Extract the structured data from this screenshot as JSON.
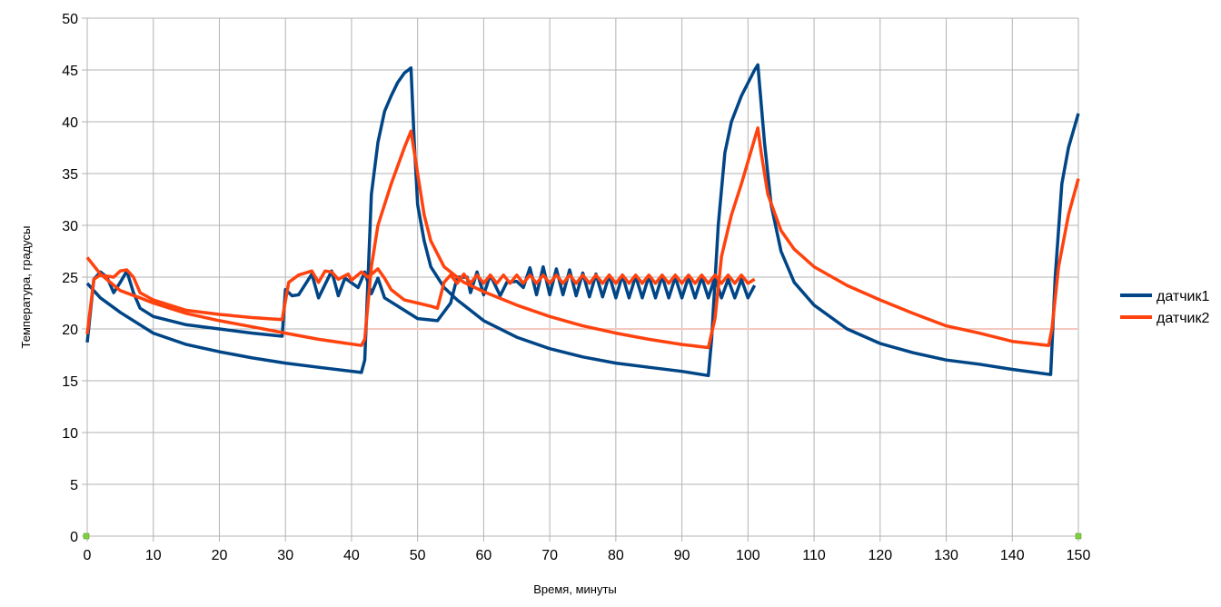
{
  "chart_data": {
    "type": "line",
    "title": "",
    "xlabel": "Время, минуты",
    "ylabel": "Температура, градусы",
    "xlim": [
      0,
      150
    ],
    "ylim": [
      0,
      50
    ],
    "xticks": [
      0,
      10,
      20,
      30,
      40,
      50,
      60,
      70,
      80,
      90,
      100,
      110,
      120,
      130,
      140,
      150
    ],
    "yticks": [
      0,
      5,
      10,
      15,
      20,
      25,
      30,
      35,
      40,
      45,
      50
    ],
    "grid": true,
    "legend_position": "right",
    "series": [
      {
        "name": "датчик1",
        "color": "#004586",
        "segments": [
          [
            [
              0,
              18.7
            ],
            [
              1,
              24.8
            ],
            [
              2,
              25.5
            ],
            [
              3,
              25.0
            ],
            [
              4,
              23.5
            ],
            [
              5,
              24.5
            ],
            [
              6,
              25.6
            ],
            [
              7,
              23.5
            ],
            [
              8,
              22
            ],
            [
              10,
              21.2
            ],
            [
              15,
              20.4
            ],
            [
              20,
              20
            ],
            [
              25,
              19.6
            ],
            [
              29.5,
              19.3
            ],
            [
              30,
              23.8
            ],
            [
              31,
              23.2
            ],
            [
              32,
              23.3
            ],
            [
              34,
              25.3
            ],
            [
              35,
              23
            ],
            [
              37,
              25.6
            ],
            [
              38,
              23.2
            ],
            [
              39,
              24.9
            ],
            [
              41,
              24
            ],
            [
              42,
              25.5
            ],
            [
              43,
              23.4
            ],
            [
              44,
              24.9
            ],
            [
              45,
              23
            ],
            [
              47,
              22.2
            ],
            [
              50,
              21
            ],
            [
              53,
              20.8
            ],
            [
              55,
              22.5
            ],
            [
              56,
              25
            ],
            [
              57.5,
              25
            ],
            [
              58,
              23.5
            ],
            [
              59,
              25.5
            ],
            [
              60,
              23.3
            ],
            [
              61,
              25.2
            ],
            [
              62.5,
              23.2
            ],
            [
              63.5,
              24.5
            ],
            [
              65,
              24.6
            ],
            [
              66,
              24
            ],
            [
              67,
              25.9
            ],
            [
              68,
              23.3
            ],
            [
              69,
              26
            ],
            [
              70,
              23.3
            ],
            [
              71,
              25.8
            ],
            [
              72,
              23.3
            ],
            [
              73,
              25.7
            ],
            [
              74,
              23.2
            ],
            [
              75,
              25.4
            ],
            [
              76,
              23.1
            ],
            [
              77,
              25.3
            ],
            [
              78,
              23.1
            ],
            [
              79,
              25.2
            ],
            [
              80,
              23
            ],
            [
              81,
              25.2
            ],
            [
              82,
              23
            ],
            [
              83,
              25.1
            ],
            [
              84,
              23
            ],
            [
              85,
              25.1
            ],
            [
              86,
              23
            ],
            [
              87,
              25.1
            ],
            [
              88,
              23
            ],
            [
              89,
              25
            ],
            [
              90,
              23
            ],
            [
              91,
              25
            ],
            [
              92,
              23
            ],
            [
              93,
              25
            ],
            [
              94,
              23
            ],
            [
              95,
              25
            ],
            [
              96,
              23
            ],
            [
              97,
              24.8
            ],
            [
              98,
              23
            ],
            [
              99,
              24.8
            ],
            [
              100,
              23
            ],
            [
              101,
              24.2
            ]
          ],
          [
            [
              0,
              24.4
            ],
            [
              2,
              23
            ],
            [
              5,
              21.6
            ],
            [
              10,
              19.6
            ],
            [
              15,
              18.5
            ],
            [
              20,
              17.8
            ],
            [
              25,
              17.2
            ],
            [
              30,
              16.7
            ],
            [
              35,
              16.3
            ],
            [
              41.5,
              15.8
            ],
            [
              42,
              17
            ],
            [
              43,
              33
            ],
            [
              44,
              38
            ],
            [
              45,
              41
            ],
            [
              46,
              42.5
            ],
            [
              47,
              43.8
            ],
            [
              48,
              44.7
            ],
            [
              49,
              45.2
            ],
            [
              49.5,
              38
            ],
            [
              50,
              32
            ],
            [
              51,
              28.5
            ],
            [
              52,
              26
            ],
            [
              54,
              24
            ],
            [
              56,
              22.8
            ],
            [
              60,
              20.8
            ],
            [
              65,
              19.2
            ],
            [
              70,
              18.1
            ],
            [
              75,
              17.3
            ],
            [
              80,
              16.7
            ],
            [
              85,
              16.3
            ],
            [
              90,
              15.9
            ],
            [
              94,
              15.5
            ],
            [
              94.5,
              19
            ],
            [
              95.5,
              30
            ],
            [
              96.5,
              37
            ],
            [
              97.5,
              40
            ],
            [
              99,
              42.5
            ],
            [
              101,
              45
            ],
            [
              101.5,
              45.5
            ],
            [
              102.5,
              38
            ],
            [
              103.5,
              32
            ],
            [
              105,
              27.5
            ],
            [
              107,
              24.5
            ],
            [
              110,
              22.3
            ],
            [
              115,
              20
            ],
            [
              120,
              18.6
            ],
            [
              125,
              17.7
            ],
            [
              130,
              17
            ],
            [
              135,
              16.6
            ],
            [
              140,
              16.1
            ],
            [
              145.8,
              15.6
            ],
            [
              146.5,
              25
            ],
            [
              147.5,
              34
            ],
            [
              148.5,
              37.5
            ],
            [
              150,
              40.8
            ]
          ]
        ]
      },
      {
        "name": "датчик2",
        "color": "#ff420e",
        "segments": [
          [
            [
              0,
              19.5
            ],
            [
              1,
              24.8
            ],
            [
              2,
              25.2
            ],
            [
              4,
              25
            ],
            [
              5,
              25.6
            ],
            [
              6,
              25.7
            ],
            [
              7,
              25
            ],
            [
              8,
              23.5
            ],
            [
              10,
              22.8
            ],
            [
              15,
              21.8
            ],
            [
              20,
              21.4
            ],
            [
              25,
              21.1
            ],
            [
              29.5,
              20.9
            ],
            [
              30.5,
              24.5
            ],
            [
              32,
              25.2
            ],
            [
              34,
              25.6
            ],
            [
              35,
              24.5
            ],
            [
              36,
              25.6
            ],
            [
              37,
              25.5
            ],
            [
              38,
              24.8
            ],
            [
              39.5,
              25.3
            ],
            [
              40,
              24.7
            ],
            [
              41.5,
              25.5
            ],
            [
              42.5,
              25
            ],
            [
              44,
              25.8
            ],
            [
              45,
              24.9
            ],
            [
              46,
              23.8
            ],
            [
              48,
              22.8
            ],
            [
              50,
              22.5
            ],
            [
              52,
              22.2
            ],
            [
              53,
              22
            ],
            [
              54,
              24.5
            ],
            [
              55,
              25.2
            ],
            [
              56,
              24.4
            ],
            [
              57,
              25.3
            ],
            [
              58,
              24.4
            ],
            [
              59,
              25.2
            ],
            [
              60,
              24.4
            ],
            [
              61,
              25.2
            ],
            [
              62,
              24.4
            ],
            [
              63,
              25.2
            ],
            [
              64,
              24.4
            ],
            [
              65,
              25.2
            ],
            [
              66,
              24.4
            ],
            [
              67,
              25.2
            ],
            [
              68,
              24.4
            ],
            [
              69,
              25.2
            ],
            [
              70,
              24.4
            ],
            [
              71,
              25.2
            ],
            [
              72,
              24.4
            ],
            [
              73,
              25.2
            ],
            [
              74,
              24.4
            ],
            [
              75,
              25.2
            ],
            [
              76,
              24.4
            ],
            [
              77,
              25.2
            ],
            [
              78,
              24.4
            ],
            [
              79,
              25.2
            ],
            [
              80,
              24.4
            ],
            [
              81,
              25.2
            ],
            [
              82,
              24.4
            ],
            [
              83,
              25.2
            ],
            [
              84,
              24.4
            ],
            [
              85,
              25.2
            ],
            [
              86,
              24.4
            ],
            [
              87,
              25.2
            ],
            [
              88,
              24.4
            ],
            [
              89,
              25.2
            ],
            [
              90,
              24.4
            ],
            [
              91,
              25.2
            ],
            [
              92,
              24.4
            ],
            [
              93,
              25.2
            ],
            [
              94,
              24.4
            ],
            [
              95,
              25.2
            ],
            [
              96,
              24.4
            ],
            [
              97,
              25.2
            ],
            [
              98,
              24.4
            ],
            [
              99,
              25.2
            ],
            [
              100,
              24.4
            ],
            [
              101,
              24.8
            ]
          ],
          [
            [
              0,
              26.9
            ],
            [
              2,
              25.3
            ],
            [
              5,
              23.7
            ],
            [
              8,
              23
            ],
            [
              10,
              22.5
            ],
            [
              15,
              21.5
            ],
            [
              20,
              20.8
            ],
            [
              25,
              20.2
            ],
            [
              30,
              19.6
            ],
            [
              35,
              19
            ],
            [
              41.5,
              18.4
            ],
            [
              42,
              19
            ],
            [
              43,
              26
            ],
            [
              44,
              30
            ],
            [
              46,
              34
            ],
            [
              48,
              37.5
            ],
            [
              49,
              39.1
            ],
            [
              50,
              35
            ],
            [
              51,
              31
            ],
            [
              52,
              28.5
            ],
            [
              54,
              26
            ],
            [
              57,
              24.5
            ],
            [
              60,
              23.6
            ],
            [
              65,
              22.3
            ],
            [
              70,
              21.2
            ],
            [
              75,
              20.3
            ],
            [
              80,
              19.6
            ],
            [
              85,
              19
            ],
            [
              90,
              18.5
            ],
            [
              94,
              18.2
            ],
            [
              95,
              21
            ],
            [
              96,
              27
            ],
            [
              97.5,
              31
            ],
            [
              99,
              34
            ],
            [
              101.5,
              39.4
            ],
            [
              102,
              37
            ],
            [
              103,
              33
            ],
            [
              105,
              29.5
            ],
            [
              107,
              27.7
            ],
            [
              110,
              26
            ],
            [
              115,
              24.2
            ],
            [
              120,
              22.8
            ],
            [
              125,
              21.5
            ],
            [
              130,
              20.3
            ],
            [
              135,
              19.6
            ],
            [
              140,
              18.8
            ],
            [
              145.5,
              18.4
            ],
            [
              146,
              20
            ],
            [
              147,
              26
            ],
            [
              148.5,
              31
            ],
            [
              150,
              34.5
            ]
          ]
        ]
      }
    ]
  }
}
